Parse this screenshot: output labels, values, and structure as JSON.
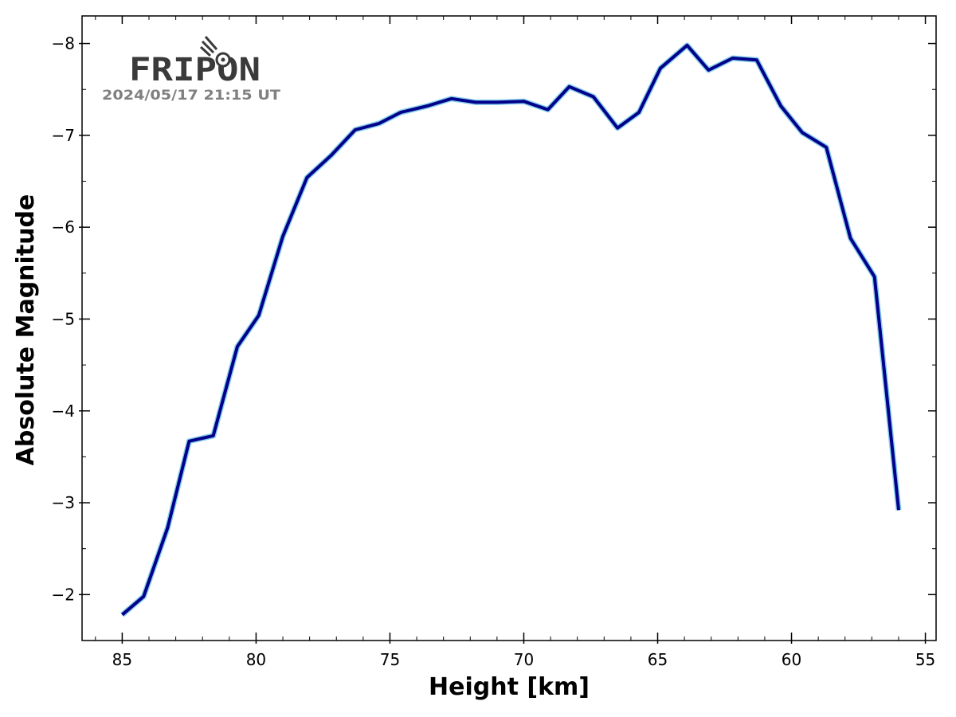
{
  "logo": {
    "text": "FRIPON",
    "timestamp": "2024/05/17  21:15 UT"
  },
  "chart_data": {
    "type": "line",
    "xlabel": "Height [km]",
    "ylabel": "Absolute Magnitude",
    "xlim": [
      86.5,
      54.6
    ],
    "ylim": [
      -1.5,
      -8.3
    ],
    "x_reversed": true,
    "y_reversed": true,
    "x_ticks": [
      85,
      80,
      75,
      70,
      65,
      60,
      55
    ],
    "y_ticks": [
      -2,
      -3,
      -4,
      -5,
      -6,
      -7,
      -8
    ],
    "x_tick_labels": [
      "85",
      "80",
      "75",
      "70",
      "65",
      "60",
      "55"
    ],
    "y_tick_labels": [
      "−2",
      "−3",
      "−4",
      "−5",
      "−6",
      "−7",
      "−8"
    ],
    "grid": false,
    "series": [
      {
        "color_outer": "#87ceeb",
        "color_inner": "#00008b",
        "x": [
          85.0,
          84.2,
          83.3,
          82.5,
          81.6,
          80.7,
          79.9,
          79.0,
          78.1,
          77.2,
          76.3,
          75.4,
          74.6,
          73.6,
          72.7,
          71.8,
          71.0,
          70.0,
          69.1,
          68.3,
          67.4,
          66.5,
          65.7,
          64.9,
          63.9,
          63.1,
          62.2,
          61.3,
          60.4,
          59.6,
          58.7,
          57.8,
          56.9,
          56.0
        ],
        "y": [
          -1.78,
          -1.98,
          -2.73,
          -3.67,
          -3.73,
          -4.7,
          -5.04,
          -5.9,
          -6.54,
          -6.78,
          -7.06,
          -7.13,
          -7.25,
          -7.32,
          -7.4,
          -7.36,
          -7.36,
          -7.37,
          -7.28,
          -7.53,
          -7.42,
          -7.08,
          -7.25,
          -7.73,
          -7.98,
          -7.71,
          -7.84,
          -7.82,
          -7.32,
          -7.03,
          -6.87,
          -5.88,
          -5.46,
          -2.92
        ]
      }
    ]
  }
}
